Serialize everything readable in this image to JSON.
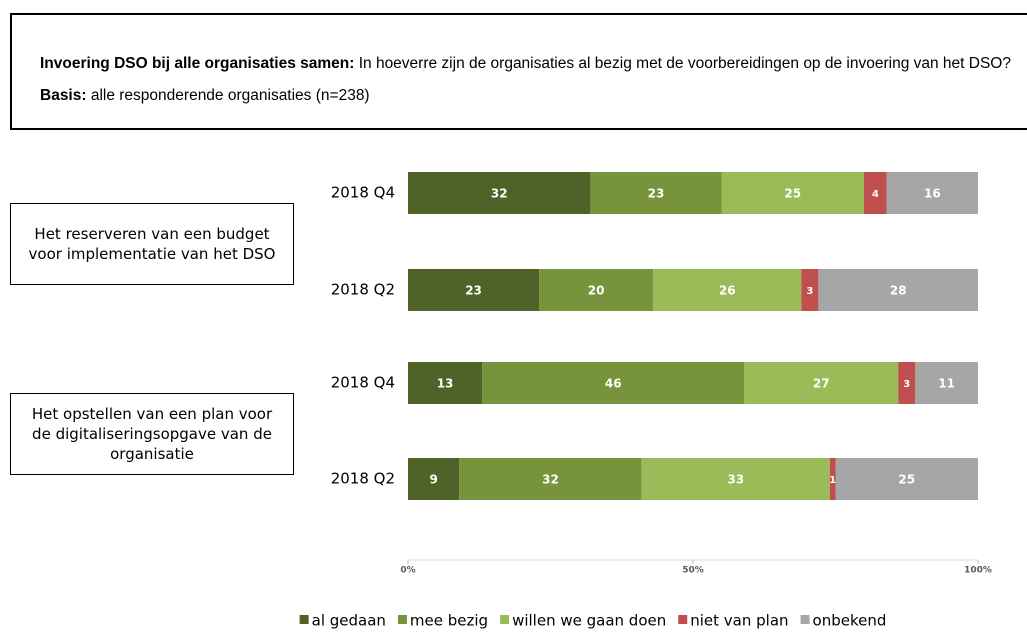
{
  "intro": [
    {
      "text": "Invoering DSO bij alle organisaties samen:",
      "bold": true
    },
    {
      "text": " In hoeverre zijn de organisaties al bezig met de voorbereidingen op de invoering van het DSO? ",
      "bold": false
    },
    {
      "text": "Basis:",
      "bold": true
    },
    {
      "text": " alle responderende organisaties (n=238)",
      "bold": false
    }
  ],
  "chart_data": {
    "type": "stacked-bar-horizontal",
    "groups": [
      "Het reserveren van een budget voor implementatie van het DSO",
      "Het opstellen van een plan voor de digitaliseringsopgave van de organisatie"
    ],
    "categories": [
      "2018 Q4",
      "2018 Q2",
      "2018 Q4",
      "2018 Q2"
    ],
    "series": [
      {
        "name": "al gedaan",
        "color": "#4f6228",
        "values": [
          32,
          23,
          13,
          9
        ]
      },
      {
        "name": "mee bezig",
        "color": "#77933c",
        "values": [
          23,
          20,
          46,
          32
        ]
      },
      {
        "name": "willen we gaan doen",
        "color": "#9bbb59",
        "values": [
          25,
          26,
          27,
          33
        ]
      },
      {
        "name": "niet van plan",
        "color": "#c0504d",
        "values": [
          4,
          3,
          3,
          1
        ]
      },
      {
        "name": "onbekend",
        "color": "#a6a6a6",
        "values": [
          16,
          28,
          11,
          25
        ]
      }
    ],
    "xlim": [
      0,
      100
    ],
    "xticks": [
      {
        "value": 0,
        "label": "0%"
      },
      {
        "value": 50,
        "label": "50%"
      },
      {
        "value": 100,
        "label": "100%"
      }
    ],
    "legend": "bottom"
  }
}
